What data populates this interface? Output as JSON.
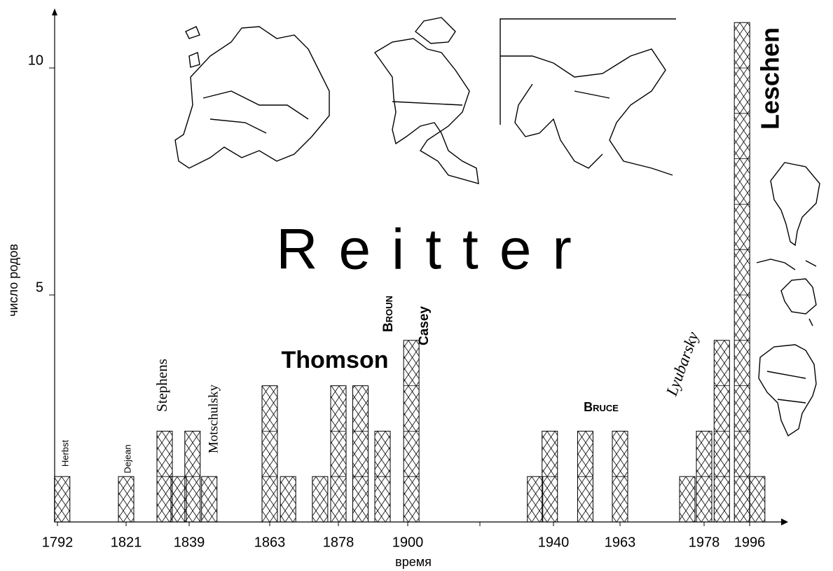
{
  "chart_data": {
    "type": "bar",
    "x_label": "время",
    "y_label": "число родов",
    "x": [
      1794,
      1821,
      1832,
      1836,
      1840,
      1845,
      1863,
      1867,
      1874,
      1878,
      1885,
      1892,
      1901,
      1935,
      1939,
      1951,
      1963,
      1975,
      1978,
      1985,
      1993,
      1999
    ],
    "values": [
      1,
      1,
      2,
      1,
      2,
      1,
      3,
      1,
      1,
      3,
      3,
      2,
      4,
      1,
      2,
      2,
      2,
      1,
      2,
      4,
      11,
      1
    ],
    "xticks": [
      1792,
      1821,
      1839,
      1863,
      1878,
      1900,
      {
        "value": 1920,
        "label": null
      },
      1940,
      1963,
      1978,
      1996
    ],
    "ylim": [
      0,
      11.25
    ],
    "yticks": [
      5,
      10
    ],
    "annotations": [
      "Herbst",
      "Dejean",
      "Stephens",
      "Motschulsky",
      "Thomson",
      "Broun",
      "Casey",
      "Reitter",
      "Bruce",
      "Lyubarsky",
      "Leschen"
    ]
  }
}
